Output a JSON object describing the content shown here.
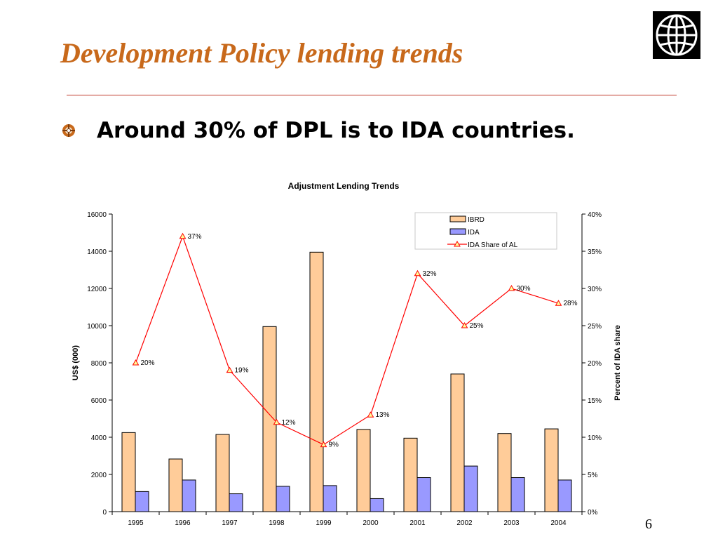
{
  "slide": {
    "title": "Development Policy lending trends",
    "bullet": "Around 30% of DPL is to IDA countries.",
    "page_number": "6",
    "logo_icon": "globe-grid-icon",
    "bullet_icon": "target-bullet-icon",
    "colors": {
      "title": "#c8691b",
      "rule": "#c0392b"
    }
  },
  "chart_data": {
    "type": "bar",
    "title": "Adjustment Lending Trends",
    "categories": [
      "1995",
      "1996",
      "1997",
      "1998",
      "1999",
      "2000",
      "2001",
      "2002",
      "2003",
      "2004"
    ],
    "ylabel": "US$ (000)",
    "y2label": "Percent of IDA share",
    "ylim": [
      0,
      16000
    ],
    "y_ticks": [
      0,
      2000,
      4000,
      6000,
      8000,
      10000,
      12000,
      14000,
      16000
    ],
    "y_tick_labels": [
      "0",
      "2000",
      "4000",
      "6000",
      "8000",
      "10000",
      "12000",
      "14000",
      "16000"
    ],
    "y2lim": [
      0,
      40
    ],
    "y2_ticks": [
      0,
      5,
      10,
      15,
      20,
      25,
      30,
      35,
      40
    ],
    "y2_tick_labels": [
      "0%",
      "5%",
      "10%",
      "15%",
      "20%",
      "25%",
      "30%",
      "35%",
      "40%"
    ],
    "legend_position": "top-right",
    "grid": false,
    "series": [
      {
        "name": "IBRD",
        "kind": "bar",
        "axis": "left",
        "color": "#ffcc99",
        "values": [
          4250,
          2830,
          4150,
          9950,
          13950,
          4420,
          3950,
          7400,
          4200,
          4450
        ]
      },
      {
        "name": "IDA",
        "kind": "bar",
        "axis": "left",
        "color": "#9999ff",
        "values": [
          1080,
          1700,
          960,
          1360,
          1400,
          700,
          1830,
          2450,
          1830,
          1700
        ]
      },
      {
        "name": "IDA Share of AL",
        "kind": "line",
        "axis": "right",
        "color": "#ff0000",
        "values": [
          20,
          37,
          19,
          12,
          9,
          13,
          32,
          25,
          30,
          28
        ],
        "labels": [
          "20%",
          "37%",
          "19%",
          "12%",
          "9%",
          "13%",
          "32%",
          "25%",
          "30%",
          "28%"
        ]
      }
    ]
  }
}
